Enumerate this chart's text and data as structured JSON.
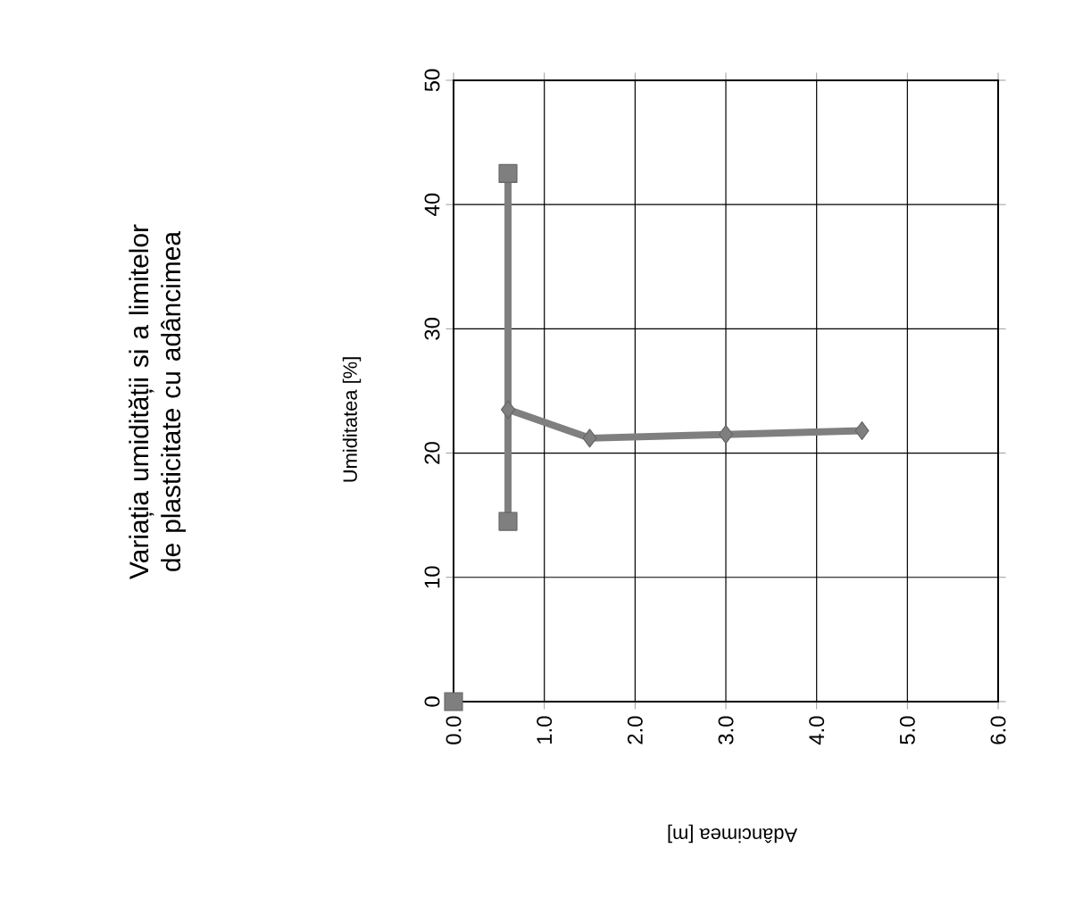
{
  "chart_data": {
    "type": "line",
    "title": "Variația umidității si a limitelor\nde plasticitate cu adâncimea",
    "xlabel": "Adâncimea [m]",
    "ylabel": "Umiditatea  [%]",
    "xlim": [
      0,
      6
    ],
    "ylim": [
      0,
      50
    ],
    "xticks": [
      {
        "value": 0,
        "label": "0.0"
      },
      {
        "value": 1,
        "label": "1.0"
      },
      {
        "value": 2,
        "label": "2.0"
      },
      {
        "value": 3,
        "label": "3.0"
      },
      {
        "value": 4,
        "label": "4.0"
      },
      {
        "value": 5,
        "label": "5.0"
      },
      {
        "value": 6,
        "label": "6.0"
      }
    ],
    "yticks": [
      0,
      10,
      20,
      30,
      40,
      50
    ],
    "grid": true,
    "line_style": "solid",
    "series": [
      {
        "marker": "square",
        "color": "#7f7f7f",
        "x": [
          0.6,
          0.6
        ],
        "values": [
          42.5,
          14.5
        ]
      },
      {
        "marker": "diamond",
        "color": "#7f7f7f",
        "x": [
          0.6,
          1.5,
          3.0,
          4.5
        ],
        "values": [
          23.5,
          21.2,
          21.5,
          21.8
        ]
      },
      {
        "type": "scatter",
        "marker": "square",
        "color": "#7f7f7f",
        "x": [
          0
        ],
        "values": [
          0
        ]
      }
    ]
  }
}
